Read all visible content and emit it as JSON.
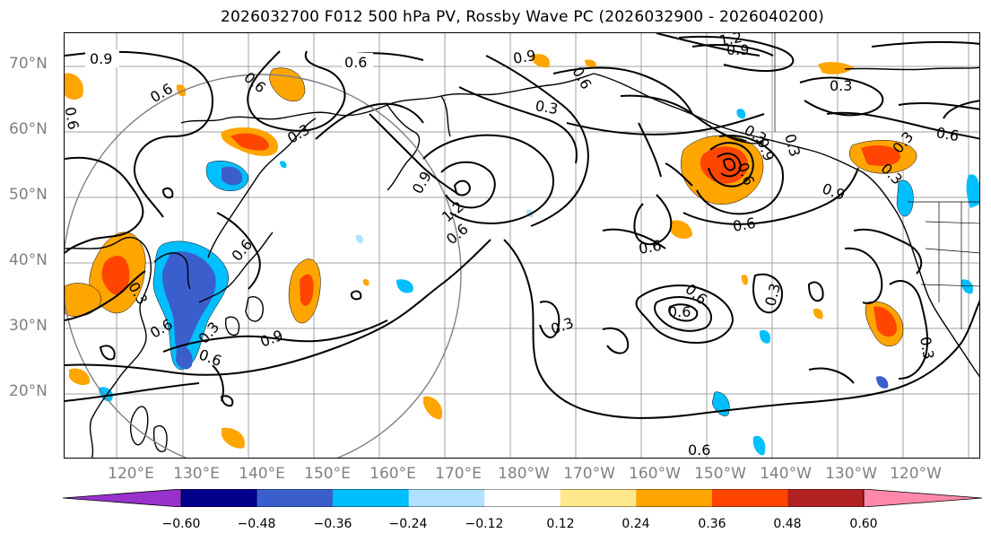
{
  "title": "2026032700 F012 500 hPa PV, Rossby Wave PC (2026032900 - 2026040200)",
  "lat_labels": [
    "70°N",
    "60°N",
    "50°N",
    "40°N",
    "30°N",
    "20°N"
  ],
  "lon_labels": [
    "120°E",
    "130°E",
    "140°E",
    "150°E",
    "160°E",
    "170°E",
    "180°W",
    "170°W",
    "160°W",
    "150°W",
    "140°W",
    "130°W",
    "120°W"
  ],
  "colorbar": {
    "ticks": [
      "−0.60",
      "−0.48",
      "−0.36",
      "−0.24",
      "−0.12",
      "0.12",
      "0.24",
      "0.36",
      "0.48",
      "0.60"
    ],
    "colors": [
      "#9932cc",
      "#00008b",
      "#3a5fcd",
      "#00bfff",
      "#b0e2ff",
      "#ffffff",
      "#ffe88a",
      "#ffa500",
      "#ff4500",
      "#b22222",
      "#ff88aa"
    ]
  },
  "contour_labels": [
    "0.9",
    "0.6",
    "0.6",
    "0.6",
    "0.3",
    "0.9",
    "0.6",
    "1.2",
    "0.9",
    "0.3",
    "0.6",
    "0.3",
    "0.9",
    "1.2",
    "0.6",
    "0.6",
    "0.3",
    "0.6",
    "0.9",
    "0.6",
    "0.3",
    "0.3",
    "0.6",
    "0.6",
    "0.3",
    "0.9",
    "0.6",
    "0.3",
    "0.6",
    "0.3",
    "0.6",
    "0.3",
    "0.9",
    "0.6",
    "0.3",
    "0.6",
    "0.3"
  ]
}
